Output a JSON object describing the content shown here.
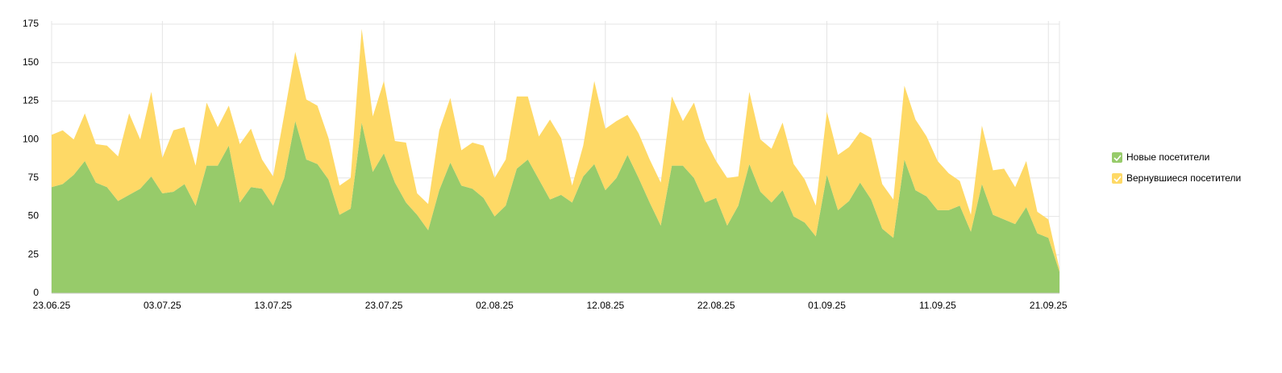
{
  "chart_data": {
    "type": "stacked_area",
    "categories": [
      "23.06.25",
      null,
      null,
      null,
      null,
      null,
      null,
      null,
      null,
      null,
      "03.07.25",
      null,
      null,
      null,
      null,
      null,
      null,
      null,
      null,
      null,
      "13.07.25",
      null,
      null,
      null,
      null,
      null,
      null,
      null,
      null,
      null,
      "23.07.25",
      null,
      null,
      null,
      null,
      null,
      null,
      null,
      null,
      null,
      "02.08.25",
      null,
      null,
      null,
      null,
      null,
      null,
      null,
      null,
      null,
      "12.08.25",
      null,
      null,
      null,
      null,
      null,
      null,
      null,
      null,
      null,
      "22.08.25",
      null,
      null,
      null,
      null,
      null,
      null,
      null,
      null,
      null,
      "01.09.25",
      null,
      null,
      null,
      null,
      null,
      null,
      null,
      null,
      null,
      "11.09.25",
      null,
      null,
      null,
      null,
      null,
      null,
      null,
      null,
      null,
      "21.09.25",
      null
    ],
    "weekend_labels": [
      "13.07.25",
      "02.08.25",
      "21.09.25"
    ],
    "weekend_color": "#b00000",
    "series": [
      {
        "name": "Новые посетители",
        "color": "#97cb6a",
        "values": [
          69,
          71,
          77,
          86,
          72,
          69,
          60,
          64,
          68,
          76,
          65,
          66,
          71,
          57,
          83,
          83,
          96,
          59,
          69,
          68,
          57,
          75,
          112,
          87,
          84,
          74,
          51,
          55,
          111,
          79,
          91,
          72,
          59,
          51,
          41,
          67,
          85,
          70,
          68,
          62,
          50,
          57,
          81,
          87,
          74,
          61,
          64,
          59,
          76,
          84,
          67,
          75,
          90,
          75,
          59,
          44,
          83,
          83,
          75,
          59,
          62,
          44,
          57,
          84,
          66,
          59,
          67,
          50,
          46,
          37,
          77,
          54,
          60,
          72,
          61,
          42,
          36,
          87,
          67,
          63,
          54,
          54,
          57,
          40,
          71,
          51,
          48,
          45,
          56,
          39,
          36,
          14
        ]
      },
      {
        "name": "Вернувшиеся посетители",
        "color": "#fed966",
        "values": [
          34,
          35,
          23,
          31,
          25,
          27,
          29,
          53,
          32,
          55,
          23,
          40,
          37,
          26,
          41,
          25,
          26,
          38,
          38,
          19,
          19,
          41,
          45,
          39,
          38,
          27,
          19,
          20,
          61,
          36,
          47,
          27,
          39,
          14,
          17,
          39,
          42,
          23,
          30,
          34,
          25,
          30,
          47,
          41,
          28,
          52,
          37,
          11,
          20,
          54,
          40,
          37,
          26,
          29,
          28,
          28,
          45,
          29,
          49,
          41,
          24,
          31,
          19,
          47,
          34,
          35,
          44,
          34,
          28,
          20,
          41,
          36,
          35,
          33,
          40,
          29,
          25,
          48,
          46,
          39,
          32,
          24,
          16,
          11,
          38,
          29,
          33,
          24,
          30,
          14,
          12,
          2
        ]
      }
    ],
    "ylim": [
      0,
      175
    ],
    "yticks": [
      0,
      25,
      50,
      75,
      100,
      125,
      150,
      175
    ],
    "grid": true
  }
}
